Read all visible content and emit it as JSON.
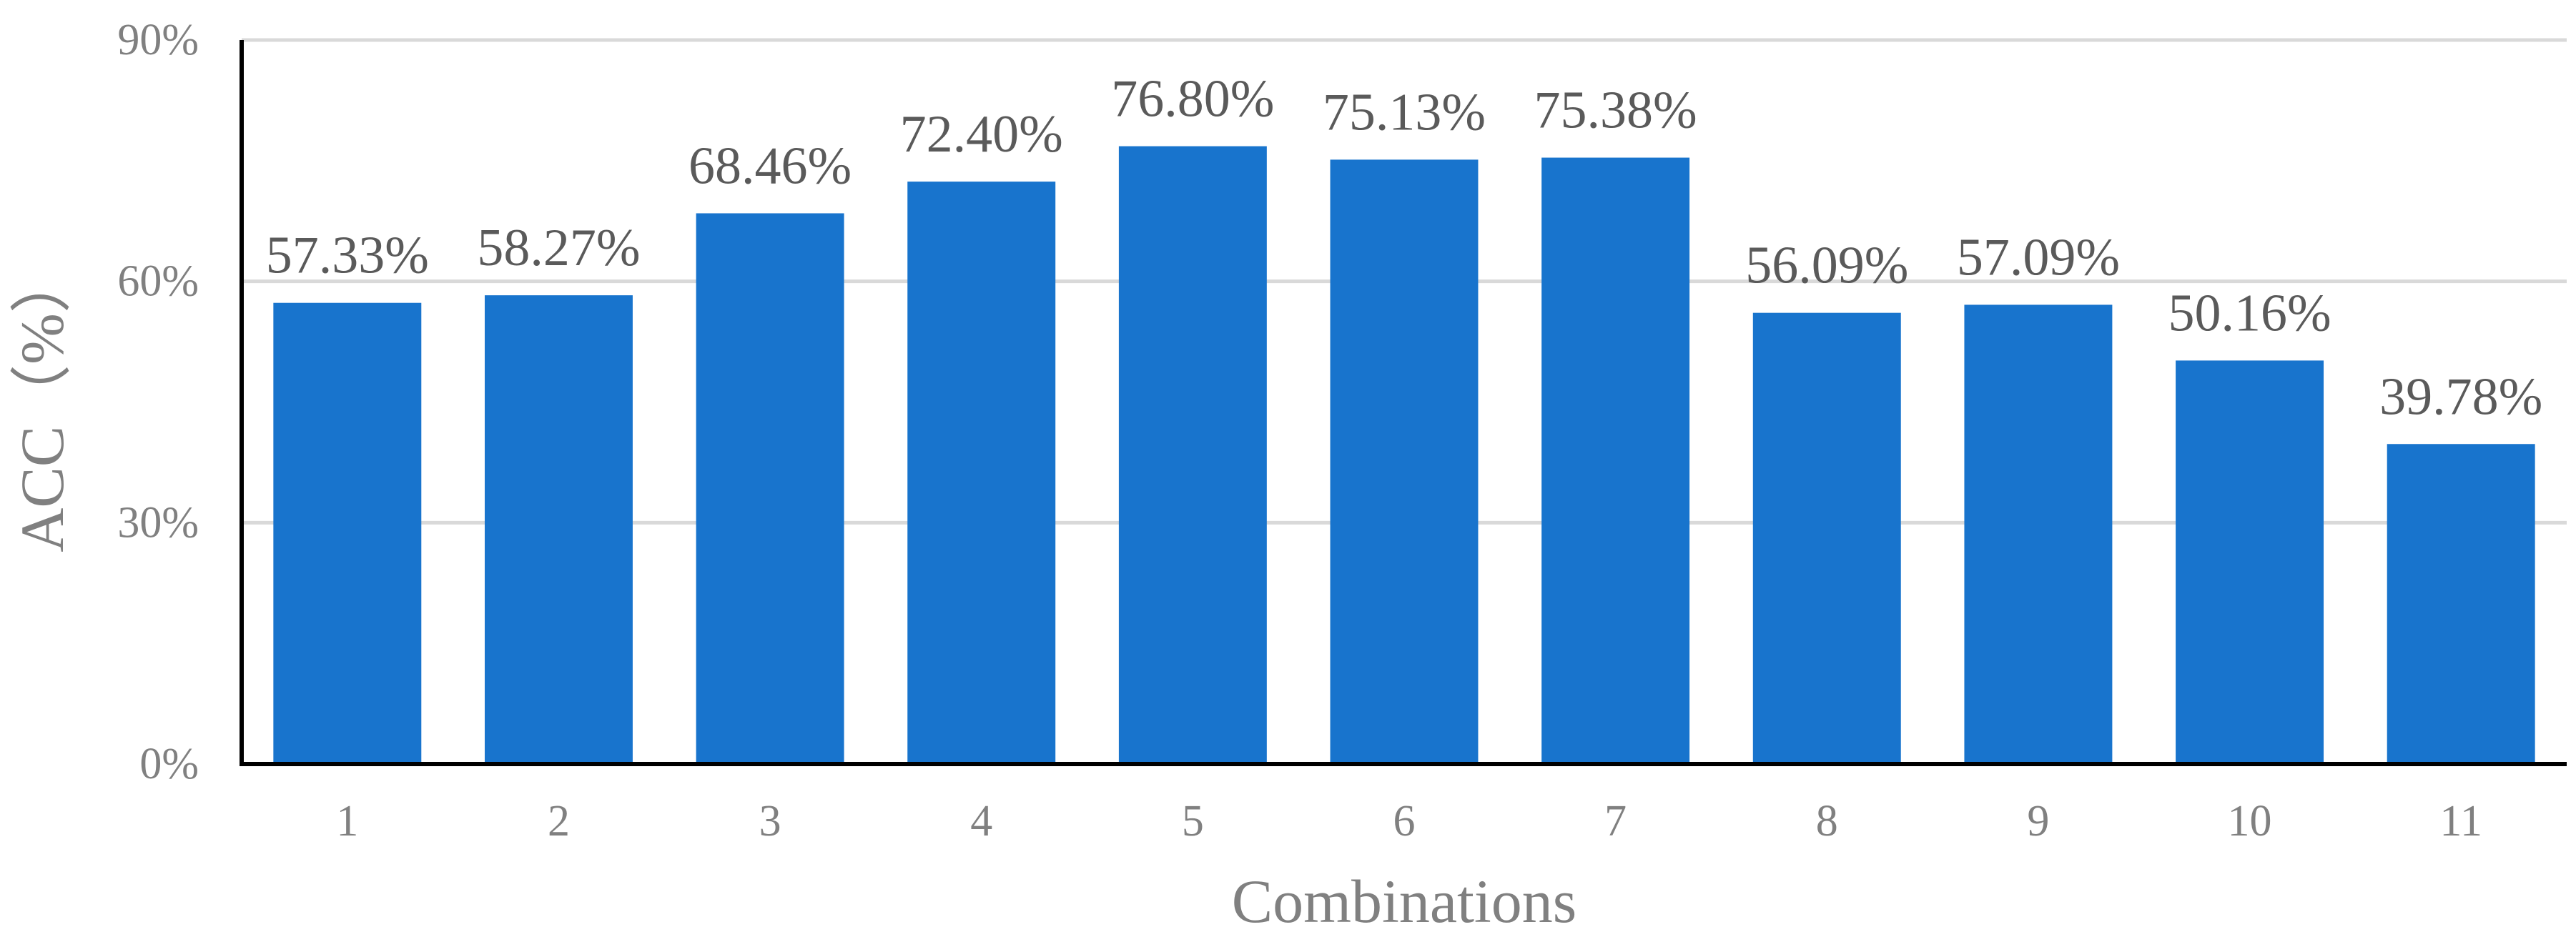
{
  "chart_data": {
    "type": "bar",
    "title": "",
    "xlabel": "Combinations",
    "ylabel": "ACC（%）",
    "categories": [
      "1",
      "2",
      "3",
      "4",
      "5",
      "6",
      "7",
      "8",
      "9",
      "10",
      "11"
    ],
    "values": [
      57.33,
      58.27,
      68.46,
      72.4,
      76.8,
      75.13,
      75.38,
      56.09,
      57.09,
      50.16,
      39.78
    ],
    "data_labels": [
      "57.33%",
      "58.27%",
      "68.46%",
      "72.40%",
      "76.80%",
      "75.13%",
      "75.38%",
      "56.09%",
      "57.09%",
      "50.16%",
      "39.78%"
    ],
    "y_ticks": [
      0,
      30,
      60,
      90
    ],
    "y_tick_labels": [
      "0%",
      "30%",
      "60%",
      "90%"
    ],
    "ylim": [
      0,
      90
    ],
    "grid": true,
    "legend": "none",
    "bar_color": "#1874CD",
    "grid_color": "#D9D9D9",
    "axis_color": "#000000"
  }
}
